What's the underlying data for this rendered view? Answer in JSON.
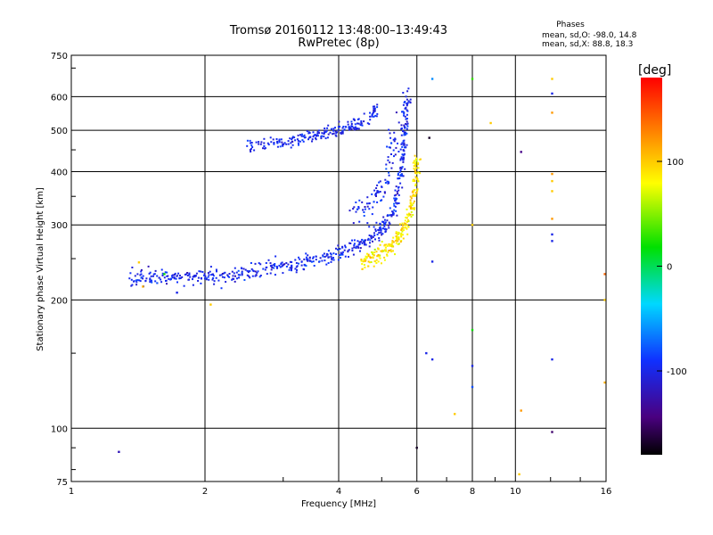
{
  "header": {
    "title_line1": "Tromsø 20160112 13:48:00–13:49:43",
    "title_line2": "RwPretec (8p)",
    "phases_title": "Phases",
    "phases_o": "mean, sd,O: -98.0, 14.8",
    "phases_x": "mean, sd,X:  88.8, 18.3"
  },
  "chart_data": {
    "type": "scatter",
    "xlabel": "Frequency [MHz]",
    "ylabel": "Stationary phase Virtual Height [km]",
    "xscale": "log",
    "yscale": "log",
    "xlim": [
      1,
      16
    ],
    "ylim": [
      75,
      750
    ],
    "xticks": [
      1,
      2,
      4,
      6,
      8,
      10,
      16
    ],
    "xtick_labels": [
      "1",
      "2",
      "4",
      "6",
      "8",
      "10",
      "16"
    ],
    "yticks": [
      75,
      100,
      200,
      300,
      400,
      500,
      600,
      750
    ],
    "ytick_labels": [
      "75",
      "100",
      "200",
      "300",
      "400",
      "500",
      "600",
      "750"
    ],
    "grid": true,
    "colorbar": {
      "label": "[deg]",
      "ticks": [
        100,
        0,
        -100
      ],
      "tick_labels": [
        "100",
        "0",
        "-100"
      ],
      "range": [
        -180,
        180
      ]
    },
    "traces": [
      {
        "id": "o_lower",
        "mode": "O",
        "phase": -98,
        "points": [
          [
            1.35,
            225
          ],
          [
            1.5,
            228
          ],
          [
            1.7,
            226
          ],
          [
            1.9,
            225
          ],
          [
            2.1,
            227
          ],
          [
            2.4,
            232
          ],
          [
            2.7,
            236
          ],
          [
            3.0,
            240
          ],
          [
            3.4,
            246
          ],
          [
            3.8,
            253
          ],
          [
            4.2,
            262
          ],
          [
            4.6,
            275
          ],
          [
            5.0,
            292
          ],
          [
            5.3,
            320
          ],
          [
            5.5,
            380
          ],
          [
            5.6,
            450
          ],
          [
            5.65,
            520
          ],
          [
            5.7,
            610
          ]
        ]
      },
      {
        "id": "o_upper",
        "mode": "O",
        "phase": -98,
        "points": [
          [
            2.5,
            460
          ],
          [
            2.8,
            465
          ],
          [
            3.1,
            472
          ],
          [
            3.4,
            482
          ],
          [
            3.7,
            492
          ],
          [
            4.0,
            502
          ],
          [
            4.3,
            512
          ],
          [
            4.6,
            525
          ],
          [
            4.9,
            560
          ]
        ]
      },
      {
        "id": "o_inner",
        "mode": "O",
        "phase": -98,
        "points": [
          [
            4.3,
            320
          ],
          [
            4.6,
            330
          ],
          [
            4.9,
            348
          ],
          [
            5.1,
            380
          ],
          [
            5.3,
            440
          ],
          [
            5.45,
            520
          ]
        ]
      },
      {
        "id": "x_trace",
        "mode": "X",
        "phase": 89,
        "points": [
          [
            4.5,
            245
          ],
          [
            4.8,
            252
          ],
          [
            5.1,
            262
          ],
          [
            5.4,
            275
          ],
          [
            5.65,
            295
          ],
          [
            5.85,
            330
          ],
          [
            5.95,
            380
          ],
          [
            6.0,
            430
          ]
        ]
      }
    ],
    "scatter_points": [
      {
        "f": 1.28,
        "h": 88,
        "phase": -120
      },
      {
        "f": 1.42,
        "h": 245,
        "phase": 100
      },
      {
        "f": 1.45,
        "h": 215,
        "phase": 110
      },
      {
        "f": 1.62,
        "h": 230,
        "phase": 20
      },
      {
        "f": 1.73,
        "h": 208,
        "phase": -100
      },
      {
        "f": 2.06,
        "h": 195,
        "phase": 100
      },
      {
        "f": 6.0,
        "h": 90,
        "phase": -170
      },
      {
        "f": 6.3,
        "h": 150,
        "phase": -100
      },
      {
        "f": 6.5,
        "h": 145,
        "phase": -100
      },
      {
        "f": 6.5,
        "h": 246,
        "phase": -100
      },
      {
        "f": 6.5,
        "h": 660,
        "phase": -60
      },
      {
        "f": 6.4,
        "h": 480,
        "phase": -170
      },
      {
        "f": 7.3,
        "h": 108,
        "phase": 100
      },
      {
        "f": 8.0,
        "h": 170,
        "phase": 20
      },
      {
        "f": 8.0,
        "h": 140,
        "phase": -100
      },
      {
        "f": 8.0,
        "h": 125,
        "phase": -80
      },
      {
        "f": 8.0,
        "h": 300,
        "phase": 100
      },
      {
        "f": 8.0,
        "h": 660,
        "phase": 30
      },
      {
        "f": 8.8,
        "h": 520,
        "phase": 100
      },
      {
        "f": 10.2,
        "h": 78,
        "phase": 100
      },
      {
        "f": 10.3,
        "h": 110,
        "phase": 120
      },
      {
        "f": 10.3,
        "h": 445,
        "phase": -140
      },
      {
        "f": 12.1,
        "h": 98,
        "phase": -150
      },
      {
        "f": 12.1,
        "h": 145,
        "phase": -100
      },
      {
        "f": 12.1,
        "h": 610,
        "phase": -100
      },
      {
        "f": 12.1,
        "h": 660,
        "phase": 100
      },
      {
        "f": 12.1,
        "h": 550,
        "phase": 120
      },
      {
        "f": 12.1,
        "h": 395,
        "phase": 120
      },
      {
        "f": 12.1,
        "h": 380,
        "phase": 100
      },
      {
        "f": 12.1,
        "h": 360,
        "phase": 100
      },
      {
        "f": 12.1,
        "h": 310,
        "phase": 120
      },
      {
        "f": 12.1,
        "h": 285,
        "phase": -100
      },
      {
        "f": 12.1,
        "h": 275,
        "phase": -100
      },
      {
        "f": 15.9,
        "h": 128,
        "phase": 110
      },
      {
        "f": 15.9,
        "h": 230,
        "phase": 140
      },
      {
        "f": 15.9,
        "h": 200,
        "phase": 100
      }
    ]
  }
}
